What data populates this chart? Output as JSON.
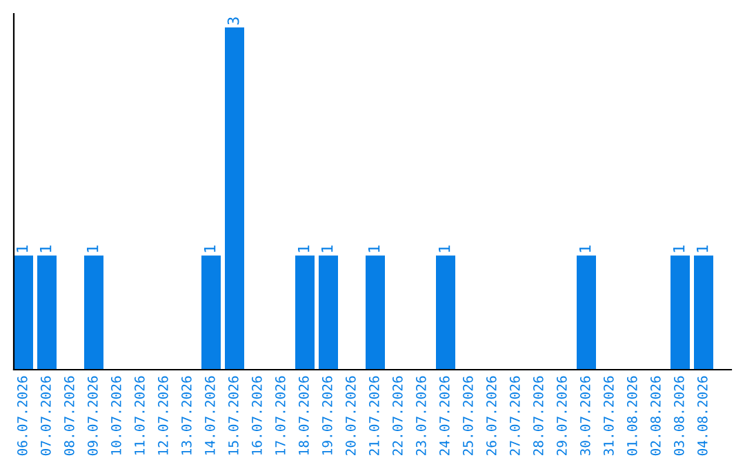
{
  "chart_data": {
    "type": "bar",
    "categories": [
      "06.07.2026",
      "07.07.2026",
      "08.07.2026",
      "09.07.2026",
      "10.07.2026",
      "11.07.2026",
      "12.07.2026",
      "13.07.2026",
      "14.07.2026",
      "15.07.2026",
      "16.07.2026",
      "17.07.2026",
      "18.07.2026",
      "19.07.2026",
      "20.07.2026",
      "21.07.2026",
      "22.07.2026",
      "23.07.2026",
      "24.07.2026",
      "25.07.2026",
      "26.07.2026",
      "27.07.2026",
      "28.07.2026",
      "29.07.2026",
      "30.07.2026",
      "31.07.2026",
      "01.08.2026",
      "02.08.2026",
      "03.08.2026",
      "04.08.2026"
    ],
    "values": [
      1,
      1,
      0,
      1,
      0,
      0,
      0,
      0,
      1,
      3,
      0,
      0,
      1,
      1,
      0,
      1,
      0,
      0,
      1,
      0,
      0,
      0,
      0,
      0,
      1,
      0,
      0,
      0,
      1,
      1
    ],
    "value_labels": [
      "1",
      "1",
      null,
      "1",
      null,
      null,
      null,
      null,
      "1",
      "3",
      null,
      null,
      "1",
      "1",
      null,
      "1",
      null,
      null,
      "1",
      null,
      null,
      null,
      null,
      null,
      "1",
      null,
      null,
      null,
      "1",
      "1"
    ],
    "color": "#077fe6",
    "tick_labels": "x",
    "grid": false
  }
}
